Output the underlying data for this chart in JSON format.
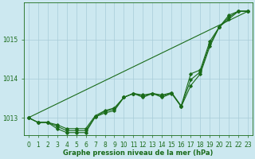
{
  "xlabel": "Graphe pression niveau de la mer (hPa)",
  "hours": [
    0,
    1,
    2,
    3,
    4,
    5,
    6,
    7,
    8,
    9,
    10,
    11,
    12,
    13,
    14,
    15,
    16,
    17,
    18,
    19,
    20,
    21,
    22,
    23
  ],
  "line1": [
    1013.0,
    1012.88,
    1012.88,
    1012.82,
    1012.72,
    1012.72,
    1012.72,
    1013.05,
    1013.18,
    1013.25,
    1013.52,
    1013.62,
    1013.58,
    1013.62,
    1013.58,
    1013.64,
    1013.3,
    1014.12,
    1014.22,
    1014.95,
    1015.32,
    1015.62,
    1015.72,
    1015.72
  ],
  "line2": [
    1013.0,
    1012.88,
    1012.88,
    1012.72,
    1012.62,
    1012.62,
    1012.62,
    1013.02,
    1013.12,
    1013.18,
    1013.52,
    1013.62,
    1013.52,
    1013.62,
    1013.52,
    1013.62,
    1013.28,
    1013.82,
    1014.12,
    1014.82,
    1015.32,
    1015.52,
    1015.72,
    1015.72
  ],
  "line3": [
    1013.0,
    1012.88,
    1012.88,
    1012.78,
    1012.67,
    1012.67,
    1012.67,
    1013.02,
    1013.16,
    1013.22,
    1013.52,
    1013.62,
    1013.55,
    1013.62,
    1013.55,
    1013.63,
    1013.29,
    1013.97,
    1014.17,
    1014.88,
    1015.32,
    1015.57,
    1015.72,
    1015.72
  ],
  "trend_y": [
    1013.0,
    1015.72
  ],
  "line_color": "#1a6b1a",
  "bg_color": "#cce8f0",
  "grid_color": "#a8ccd8",
  "ylim": [
    1012.55,
    1015.95
  ],
  "yticks": [
    1013,
    1014,
    1015
  ],
  "marker": "D",
  "marker_size": 1.8,
  "line_width": 0.8,
  "label_fontsize": 6.0,
  "tick_fontsize": 5.5
}
